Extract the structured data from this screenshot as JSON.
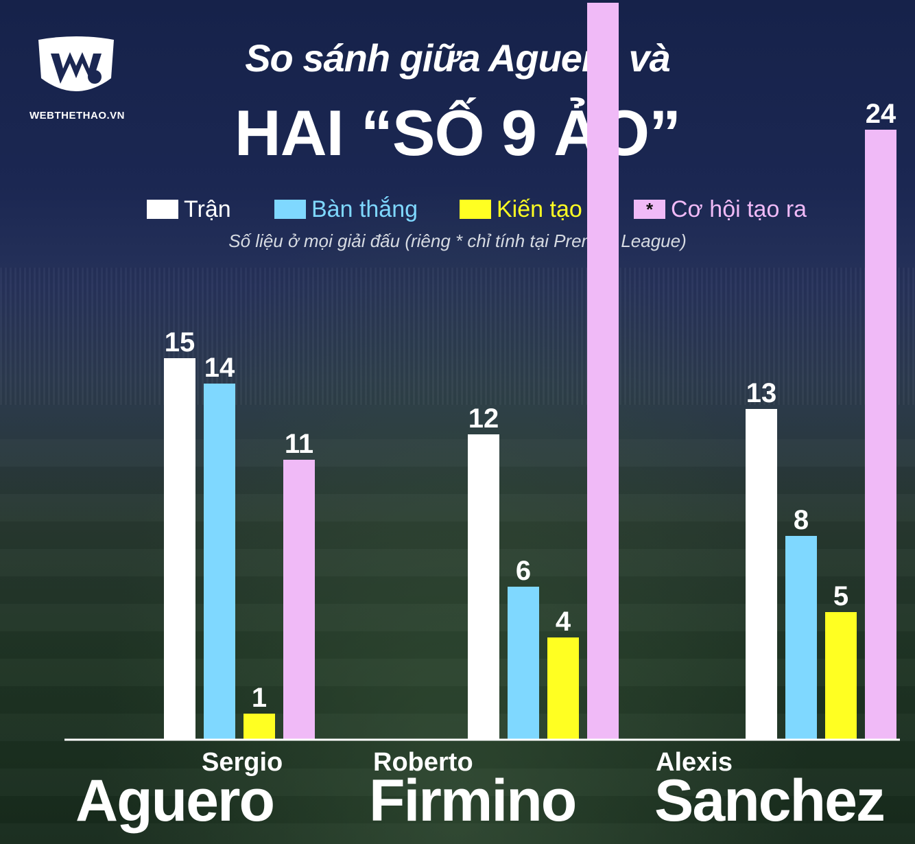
{
  "brand": {
    "logo_text": "WEBTHETHAO.VN"
  },
  "title": {
    "line1": "So sánh giữa Aguero và",
    "line2": "HAI “SỐ 9 ẢO”"
  },
  "legend": [
    {
      "label": "Trận",
      "color": "#ffffff",
      "marker": ""
    },
    {
      "label": "Bàn thắng",
      "color": "#7fd8ff",
      "marker": ""
    },
    {
      "label": "Kiến tạo",
      "color": "#ffff22",
      "marker": ""
    },
    {
      "label": "Cơ hội tạo ra",
      "color": "#f0baf7",
      "marker": "*"
    }
  ],
  "note": "Số liệu ở mọi giải đấu (riêng * chỉ tính tại Premier League)",
  "players": [
    {
      "first_name": "Sergio",
      "last_name": "Aguero"
    },
    {
      "first_name": "Roberto",
      "last_name": "Firmino"
    },
    {
      "first_name": "Alexis",
      "last_name": "Sanchez"
    }
  ],
  "chart_data": {
    "type": "bar",
    "categories": [
      "Sergio Aguero",
      "Roberto Firmino",
      "Alexis Sanchez"
    ],
    "series": [
      {
        "name": "Trận",
        "color": "#ffffff",
        "values": [
          15,
          12,
          13
        ]
      },
      {
        "name": "Bàn thắng",
        "color": "#7fd8ff",
        "values": [
          14,
          6,
          8
        ]
      },
      {
        "name": "Kiến tạo",
        "color": "#ffff22",
        "values": [
          1,
          4,
          5
        ]
      },
      {
        "name": "Cơ hội tạo ra",
        "color": "#f0baf7",
        "values": [
          11,
          29,
          24
        ]
      }
    ],
    "title": "So sánh giữa Aguero và HAI “SỐ 9 ẢO”",
    "xlabel": "",
    "ylabel": "",
    "grid": false,
    "legend_position": "top"
  }
}
